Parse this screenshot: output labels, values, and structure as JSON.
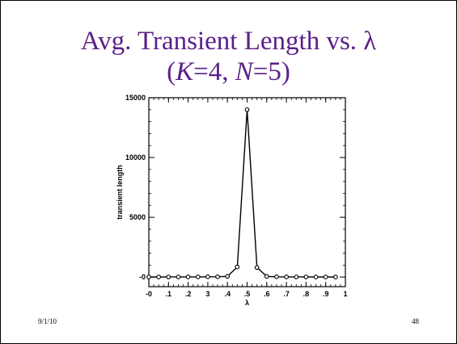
{
  "slide": {
    "title_line1": "Avg. Transient Length vs. λ",
    "title_line2_pre": "(",
    "title_line2_k": "K",
    "title_line2_mid": "=4, ",
    "title_line2_n": "N",
    "title_line2_post": "=5)",
    "date": "9/1/10",
    "page_number": "48"
  },
  "chart_data": {
    "type": "line",
    "xlabel": "λ",
    "ylabel": "transient length",
    "xlim": [
      0,
      1
    ],
    "ylim": [
      -800,
      15000
    ],
    "x_tick_labels": [
      "-0",
      ".1",
      ".2",
      "3",
      ".4",
      ".5",
      ".6",
      ".7",
      ".8",
      ".9",
      "1"
    ],
    "y_tick_labels": [
      "-0",
      "5000",
      "10000",
      "15000"
    ],
    "y_tick_values": [
      0,
      5000,
      10000,
      15000
    ],
    "grid": false,
    "legend": "none",
    "color": "#000000",
    "series": [
      {
        "x": [
          0,
          0.05,
          0.1,
          0.15,
          0.2,
          0.25,
          0.3,
          0.35,
          0.4,
          0.45,
          0.5,
          0.55,
          0.6,
          0.65,
          0.7,
          0.75,
          0.8,
          0.85,
          0.9,
          0.95
        ],
        "values": [
          10,
          10,
          15,
          15,
          20,
          20,
          25,
          30,
          60,
          850,
          14000,
          800,
          60,
          25,
          20,
          15,
          15,
          10,
          10,
          10
        ]
      }
    ]
  }
}
